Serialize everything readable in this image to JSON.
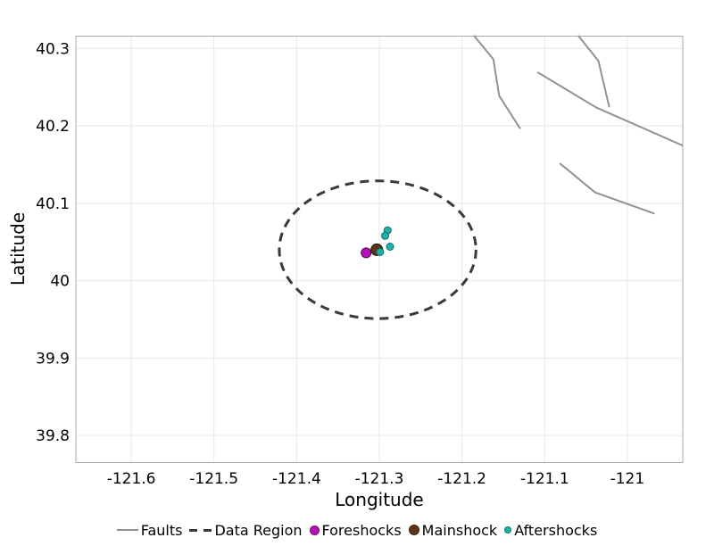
{
  "chart_data": {
    "type": "scatter",
    "title": "",
    "xlabel": "Longitude",
    "ylabel": "Latitude",
    "xlim": [
      -121.667,
      -120.933
    ],
    "ylim": [
      39.765,
      40.316
    ],
    "x_tick_values": [
      -121.6,
      -121.5,
      -121.4,
      -121.3,
      -121.2,
      -121.1,
      -121.0
    ],
    "x_tick_labels": [
      "-121.6",
      "-121.5",
      "-121.4",
      "-121.3",
      "-121.2",
      "-121.1",
      "-121"
    ],
    "y_tick_values": [
      40.3,
      40.2,
      40.1,
      40.0,
      39.9,
      39.8
    ],
    "y_tick_labels": [
      "40.3",
      "40.2",
      "40.1",
      "40",
      "39.9",
      "39.8"
    ],
    "grid": true,
    "legend_position": "bottom",
    "colors": {
      "background": "#ffffff",
      "plot_border": "#a8a8a8",
      "grid": "#e8e8e8",
      "fault": "#919191",
      "data_region": "#3a3a3a",
      "foreshocks": "#b412b4",
      "mainshock": "#5e3317",
      "aftershocks": "#1cb2aa",
      "tick_text": "#000000"
    },
    "faults": {
      "label": "Faults",
      "stroke_width": 2,
      "lines": [
        [
          [
            -121.185,
            40.316
          ],
          [
            -121.162,
            40.286
          ],
          [
            -121.155,
            40.239
          ],
          [
            -121.13,
            40.197
          ]
        ],
        [
          [
            -121.108,
            40.269
          ],
          [
            -121.038,
            40.224
          ],
          [
            -120.934,
            40.175
          ]
        ],
        [
          [
            -121.059,
            40.316
          ],
          [
            -121.035,
            40.284
          ],
          [
            -121.022,
            40.225
          ]
        ],
        [
          [
            -121.081,
            40.151
          ],
          [
            -121.039,
            40.114
          ],
          [
            -120.968,
            40.087
          ]
        ]
      ]
    },
    "data_region": {
      "label": "Data Region",
      "center": [
        -121.302,
        40.04
      ],
      "rx": 0.119,
      "ry": 0.089,
      "dash": "10 7",
      "stroke_width": 3
    },
    "series": [
      {
        "name": "Foreshocks",
        "color": "#b412b4",
        "edge": "#4a064a",
        "marker_size": 11,
        "points": [
          [
            -121.316,
            40.036
          ]
        ]
      },
      {
        "name": "Mainshock",
        "color": "#5e3317",
        "edge": "#1c0e02",
        "marker_size": 13,
        "points": [
          [
            -121.303,
            40.04
          ]
        ]
      },
      {
        "name": "Aftershocks",
        "color": "#1cb2aa",
        "edge": "#0e6e68",
        "marker_size": 8,
        "points": [
          [
            -121.29,
            40.065
          ],
          [
            -121.293,
            40.058
          ],
          [
            -121.287,
            40.044
          ],
          [
            -121.299,
            40.037
          ]
        ]
      }
    ],
    "legend": [
      {
        "swatch": "line",
        "label": "Faults",
        "color": "#919191"
      },
      {
        "swatch": "dash",
        "label": "Data Region",
        "color": "#3a3a3a"
      },
      {
        "swatch": "dot",
        "label": "Foreshocks",
        "color": "#b412b4",
        "size": 11
      },
      {
        "swatch": "dot",
        "label": "Mainshock",
        "color": "#5e3317",
        "size": 12
      },
      {
        "swatch": "dot",
        "label": "Aftershocks",
        "color": "#1cb2aa",
        "size": 8
      }
    ]
  }
}
